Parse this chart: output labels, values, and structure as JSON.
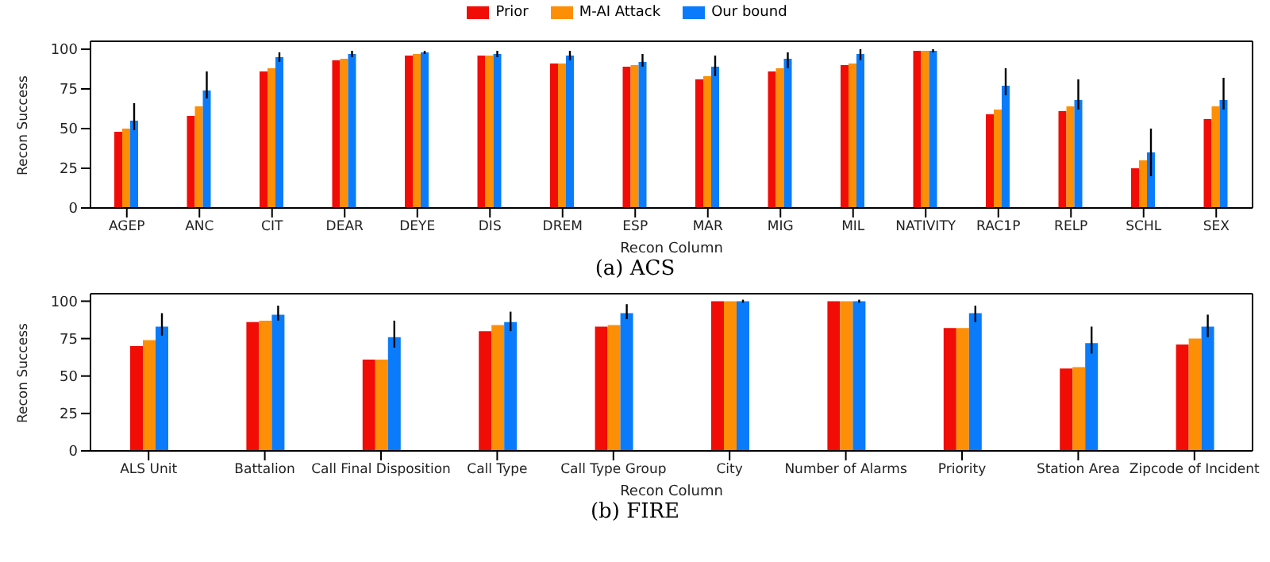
{
  "chart_data": [
    {
      "type": "bar",
      "title": "(a) ACS",
      "xlabel": "Recon Column",
      "ylabel": "Recon Success",
      "legend": "top",
      "categories": [
        "AGEP",
        "ANC",
        "CIT",
        "DEAR",
        "DEYE",
        "DIS",
        "DREM",
        "ESP",
        "MAR",
        "MIG",
        "MIL",
        "NATIVITY",
        "RAC1P",
        "RELP",
        "SCHL",
        "SEX"
      ],
      "ylim": [
        0,
        105
      ],
      "yticks": [
        0,
        25,
        50,
        75,
        100
      ],
      "series": [
        {
          "name": "Prior",
          "color": "#f10c06",
          "values": [
            48,
            58,
            86,
            93,
            96,
            96,
            91,
            89,
            81,
            86,
            90,
            99,
            59,
            61,
            25,
            56
          ]
        },
        {
          "name": "M-AI Attack",
          "color": "#fd8f07",
          "values": [
            50,
            64,
            88,
            94,
            97,
            96,
            91,
            90,
            83,
            88,
            91,
            99,
            62,
            64,
            30,
            64
          ]
        },
        {
          "name": "Our bound",
          "color": "#0a7cfb",
          "values": [
            55,
            74,
            95,
            97,
            98,
            97,
            96,
            92,
            89,
            94,
            97,
            99,
            77,
            68,
            35,
            68
          ],
          "errors": [
            [
              49,
              66
            ],
            [
              69,
              86
            ],
            [
              92,
              98
            ],
            [
              95,
              99
            ],
            [
              97,
              99
            ],
            [
              95,
              99
            ],
            [
              93,
              99
            ],
            [
              89,
              97
            ],
            [
              83,
              96
            ],
            [
              88,
              98
            ],
            [
              93,
              100
            ],
            [
              98,
              100
            ],
            [
              71,
              88
            ],
            [
              62,
              81
            ],
            [
              20,
              50
            ],
            [
              62,
              82
            ]
          ]
        }
      ]
    },
    {
      "type": "bar",
      "title": "(b) FIRE",
      "xlabel": "Recon Column",
      "ylabel": "Recon Success",
      "categories": [
        "ALS Unit",
        "Battalion",
        "Call Final Disposition",
        "Call Type",
        "Call Type Group",
        "City",
        "Number of Alarms",
        "Priority",
        "Station Area",
        "Zipcode of Incident"
      ],
      "ylim": [
        0,
        105
      ],
      "yticks": [
        0,
        25,
        50,
        75,
        100
      ],
      "series": [
        {
          "color": "#f10c06",
          "values": [
            70,
            86,
            61,
            80,
            83,
            100,
            100,
            82,
            55,
            71
          ]
        },
        {
          "color": "#fd8f07",
          "values": [
            74,
            87,
            61,
            84,
            84,
            100,
            100,
            82,
            56,
            75
          ]
        },
        {
          "color": "#0a7cfb",
          "values": [
            83,
            91,
            76,
            86,
            92,
            100,
            100,
            92,
            72,
            83
          ],
          "errors": [
            [
              77,
              92
            ],
            [
              87,
              97
            ],
            [
              69,
              87
            ],
            [
              80,
              93
            ],
            [
              88,
              98
            ],
            [
              99,
              101
            ],
            [
              99,
              101
            ],
            [
              86,
              97
            ],
            [
              65,
              83
            ],
            [
              76,
              91
            ]
          ]
        }
      ]
    }
  ]
}
